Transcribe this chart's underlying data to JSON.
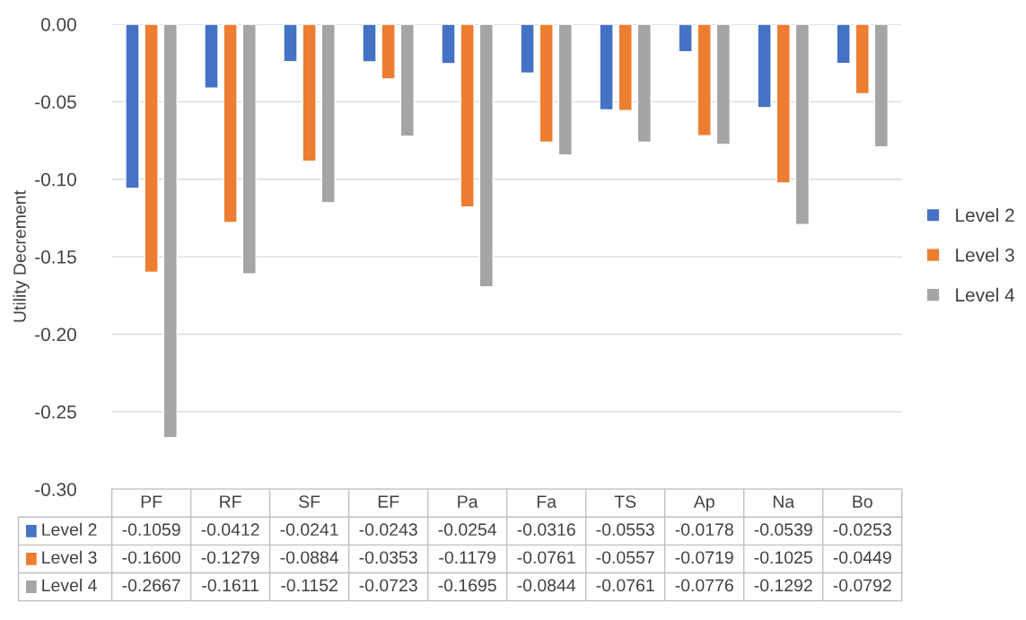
{
  "chart_data": {
    "type": "bar",
    "ylabel": "Utility Decrement",
    "categories": [
      "PF",
      "RF",
      "SF",
      "EF",
      "Pa",
      "Fa",
      "TS",
      "Ap",
      "Na",
      "Bo"
    ],
    "series": [
      {
        "name": "Level 2",
        "color": "#4472c4",
        "values": [
          -0.1059,
          -0.0412,
          -0.0241,
          -0.0243,
          -0.0254,
          -0.0316,
          -0.0553,
          -0.0178,
          -0.0539,
          -0.0253
        ],
        "value_labels": [
          "-0.1059",
          "-0.0412",
          "-0.0241",
          "-0.0243",
          "-0.0254",
          "-0.0316",
          "-0.0553",
          "-0.0178",
          "-0.0539",
          "-0.0253"
        ]
      },
      {
        "name": "Level 3",
        "color": "#ed7d31",
        "values": [
          -0.16,
          -0.1279,
          -0.0884,
          -0.0353,
          -0.1179,
          -0.0761,
          -0.0557,
          -0.0719,
          -0.1025,
          -0.0449
        ],
        "value_labels": [
          "-0.1600",
          "-0.1279",
          "-0.0884",
          "-0.0353",
          "-0.1179",
          "-0.0761",
          "-0.0557",
          "-0.0719",
          "-0.1025",
          "-0.0449"
        ]
      },
      {
        "name": "Level 4",
        "color": "#a5a5a5",
        "values": [
          -0.2667,
          -0.1611,
          -0.1152,
          -0.0723,
          -0.1695,
          -0.0844,
          -0.0761,
          -0.0776,
          -0.1292,
          -0.0792
        ],
        "value_labels": [
          "-0.2667",
          "-0.1611",
          "-0.1152",
          "-0.0723",
          "-0.1695",
          "-0.0844",
          "-0.0761",
          "-0.0776",
          "-0.1292",
          "-0.0792"
        ]
      }
    ],
    "ylim": [
      -0.3,
      0.0
    ],
    "yticks": [
      {
        "value": -0.3,
        "label": "-0.30"
      },
      {
        "value": -0.25,
        "label": "-0.25"
      },
      {
        "value": -0.2,
        "label": "-0.20"
      },
      {
        "value": -0.15,
        "label": "-0.15"
      },
      {
        "value": -0.1,
        "label": "-0.10"
      },
      {
        "value": -0.05,
        "label": "-0.05"
      },
      {
        "value": 0.0,
        "label": "0.00"
      }
    ],
    "grid": "y",
    "legend": "right"
  }
}
